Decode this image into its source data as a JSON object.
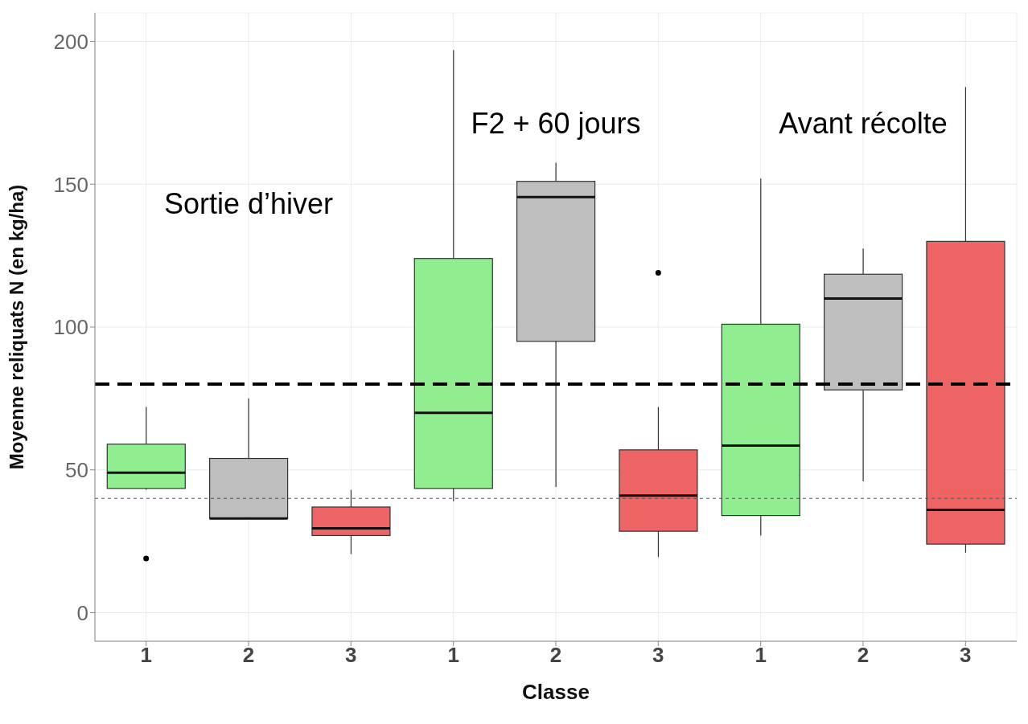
{
  "chart_data": {
    "type": "box",
    "xlabel": "Classe",
    "ylabel": "Moyenne reliquats N (en kg/ha)",
    "categories": [
      "1",
      "2",
      "3",
      "1",
      "2",
      "3",
      "1",
      "2",
      "3"
    ],
    "colors": [
      "#90ee90",
      "#bebebe",
      "#ee6363",
      "#90ee90",
      "#bebebe",
      "#ee6363",
      "#90ee90",
      "#bebebe",
      "#ee6363"
    ],
    "boxes": [
      {
        "low": 43,
        "q1": 43.5,
        "median": 49,
        "q3": 59,
        "high": 72,
        "outliers": [
          19
        ]
      },
      {
        "low": 33,
        "q1": 33,
        "median": 33,
        "q3": 54,
        "high": 75
      },
      {
        "low": 20.5,
        "q1": 27,
        "median": 29.5,
        "q3": 37,
        "high": 43
      },
      {
        "low": 39,
        "q1": 43.5,
        "median": 70,
        "q3": 124,
        "high": 197
      },
      {
        "low": 44,
        "q1": 95,
        "median": 145.5,
        "q3": 151,
        "high": 157.5
      },
      {
        "low": 19.5,
        "q1": 28.5,
        "median": 41,
        "q3": 57,
        "high": 72,
        "outliers": [
          119
        ]
      },
      {
        "low": 27,
        "q1": 34,
        "median": 58.5,
        "q3": 101,
        "high": 152
      },
      {
        "low": 46,
        "q1": 78,
        "median": 110,
        "q3": 118.5,
        "high": 127.5
      },
      {
        "low": 21,
        "q1": 24,
        "median": 36,
        "q3": 130,
        "high": 184
      }
    ],
    "ylim": [
      -10,
      210
    ],
    "yticks": [
      0,
      50,
      100,
      150,
      200
    ],
    "grid": true,
    "ref_lines": [
      {
        "axis": "y",
        "value": 80,
        "line_style": "dashed",
        "color": "#000000"
      },
      {
        "axis": "y",
        "value": 40,
        "line_style": "dotted",
        "color": "#555555"
      }
    ],
    "annotations": [
      "Sortie d’hiver",
      "F2 + 60 jours",
      "Avant récolte"
    ]
  }
}
